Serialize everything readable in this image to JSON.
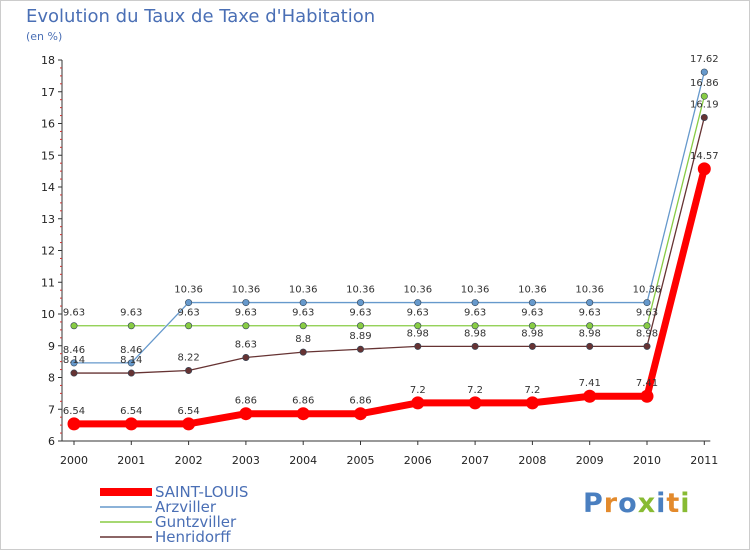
{
  "chart_data": {
    "type": "line",
    "title": "Evolution du Taux de Taxe d'Habitation",
    "subtitle": "(en %)",
    "xlabel": "",
    "ylabel": "",
    "categories": [
      "2000",
      "2001",
      "2002",
      "2003",
      "2004",
      "2005",
      "2006",
      "2007",
      "2008",
      "2009",
      "2010",
      "2011"
    ],
    "ylim": [
      6,
      18
    ],
    "yticks": [
      "6",
      "7",
      "8",
      "9",
      "10",
      "11",
      "12",
      "13",
      "14",
      "15",
      "16",
      "17",
      "18"
    ],
    "grid": false,
    "legend": "bottom-left",
    "series": [
      {
        "name": "SAINT-LOUIS",
        "color": "#ff0000",
        "values": [
          6.54,
          6.54,
          6.54,
          6.86,
          6.86,
          6.86,
          7.2,
          7.2,
          7.2,
          7.41,
          7.41,
          14.57
        ],
        "labels": [
          "6.54",
          "6.54",
          "6.54",
          "6.86",
          "6.86",
          "6.86",
          "7.2",
          "7.2",
          "7.2",
          "7.41",
          "7.41",
          "14.57"
        ]
      },
      {
        "name": "Arzviller",
        "color": "#6699cc",
        "values": [
          8.46,
          8.46,
          10.36,
          10.36,
          10.36,
          10.36,
          10.36,
          10.36,
          10.36,
          10.36,
          10.36,
          17.62
        ],
        "labels": [
          "8.46",
          "8.46",
          "10.36",
          "10.36",
          "10.36",
          "10.36",
          "10.36",
          "10.36",
          "10.36",
          "10.36",
          "10.36",
          "17.62"
        ]
      },
      {
        "name": "Guntzviller",
        "color": "#88cc44",
        "values": [
          9.63,
          9.63,
          9.63,
          9.63,
          9.63,
          9.63,
          9.63,
          9.63,
          9.63,
          9.63,
          9.63,
          16.86
        ],
        "labels": [
          "9.63",
          "9.63",
          "9.63",
          "9.63",
          "9.63",
          "9.63",
          "9.63",
          "9.63",
          "9.63",
          "9.63",
          "9.63",
          "16.86"
        ]
      },
      {
        "name": "Henridorff",
        "color": "#663333",
        "values": [
          8.14,
          8.14,
          8.22,
          8.63,
          8.8,
          8.89,
          8.98,
          8.98,
          8.98,
          8.98,
          8.98,
          16.19
        ],
        "labels": [
          "8.14",
          "8.14",
          "8.22",
          "8.63",
          "8.8",
          "8.89",
          "8.98",
          "8.98",
          "8.98",
          "8.98",
          "8.98",
          "16.19"
        ]
      }
    ]
  },
  "logo": {
    "letters": [
      {
        "char": "P",
        "color": "#4a7fc0"
      },
      {
        "char": "r",
        "color": "#e38a2c"
      },
      {
        "char": "o",
        "color": "#4a7fc0"
      },
      {
        "char": "x",
        "color": "#88bb33"
      },
      {
        "char": "i",
        "color": "#4a7fc0"
      },
      {
        "char": "t",
        "color": "#e38a2c"
      },
      {
        "char": "i",
        "color": "#88bb33"
      }
    ]
  }
}
